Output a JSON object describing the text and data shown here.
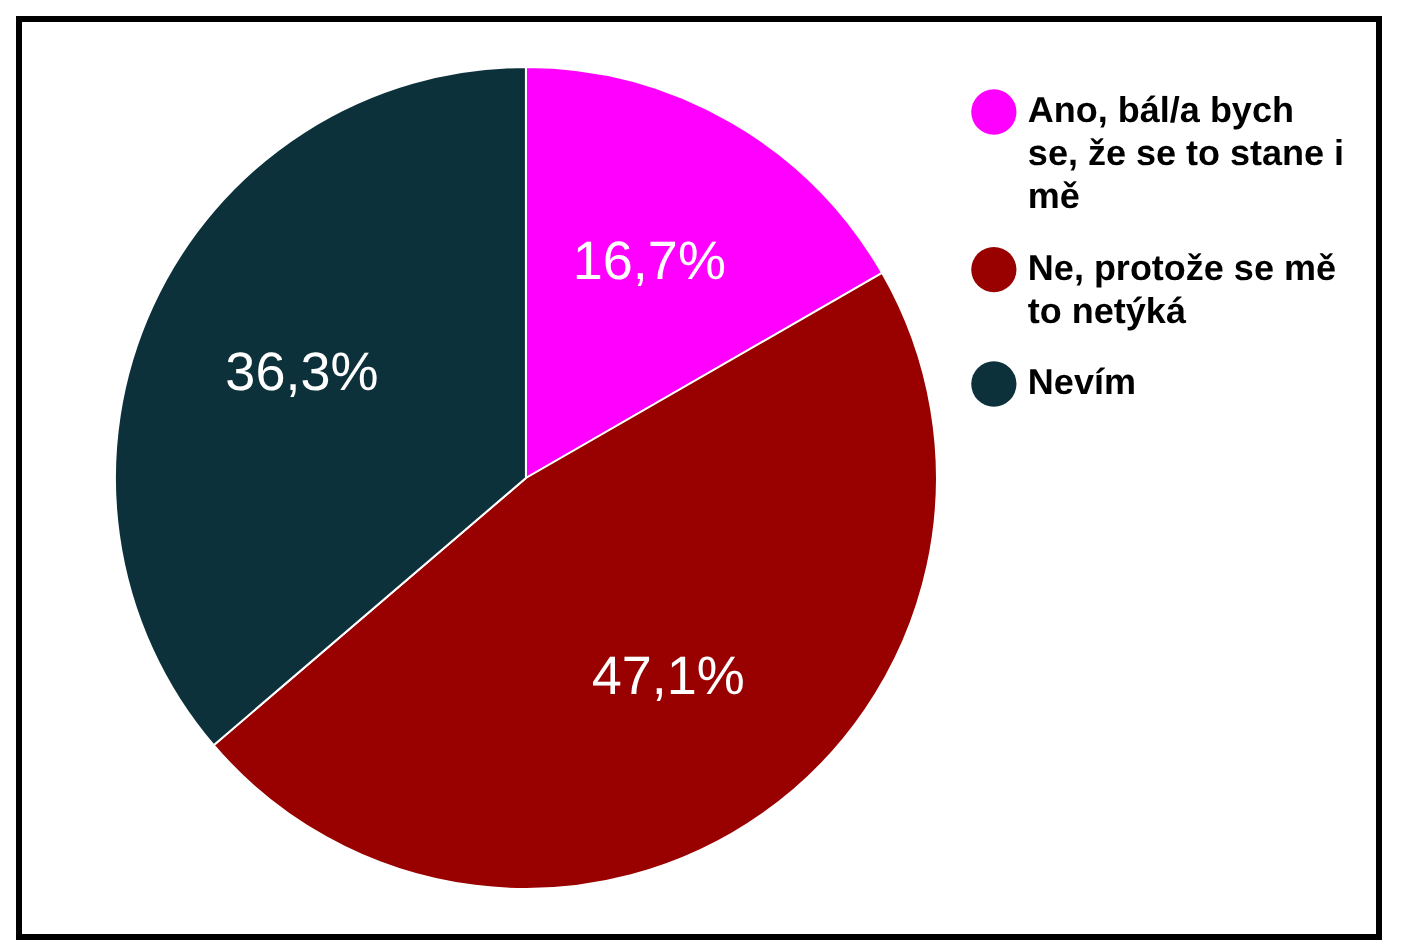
{
  "chart_data": {
    "type": "pie",
    "categories": [
      "Ano, bál/a bych se, že se to stane i mě",
      "Ne, protože se mě to netýká",
      "Nevím"
    ],
    "values": [
      16.7,
      47.1,
      36.3
    ],
    "value_labels": [
      "16,7%",
      "47,1%",
      "36,3%"
    ],
    "colors": [
      "#ff00ff",
      "#990000",
      "#0d313b"
    ],
    "legend": "top right"
  }
}
